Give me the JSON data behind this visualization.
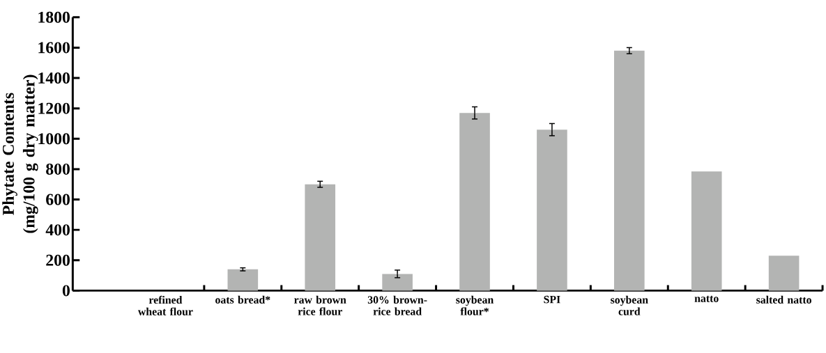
{
  "chart_data": {
    "type": "bar",
    "ylabel": "Phytate Contents (mg/100 g dry matter)",
    "categories": [
      "refined wheat flour",
      "oats bread*",
      "raw brown rice flour",
      "30% brown-rice bread",
      "soybean flour*",
      "SPI",
      "soybean curd",
      "natto",
      "salted natto"
    ],
    "values": [
      0,
      140,
      700,
      110,
      1170,
      1060,
      1580,
      785,
      230
    ],
    "errors": [
      null,
      10,
      20,
      25,
      40,
      40,
      20,
      null,
      null
    ],
    "color": "#b3b4b3",
    "ylim": [
      0,
      1800
    ],
    "yticks": [
      0,
      200,
      400,
      600,
      800,
      1000,
      1200,
      1400,
      1600,
      1800
    ],
    "grid": false
  }
}
